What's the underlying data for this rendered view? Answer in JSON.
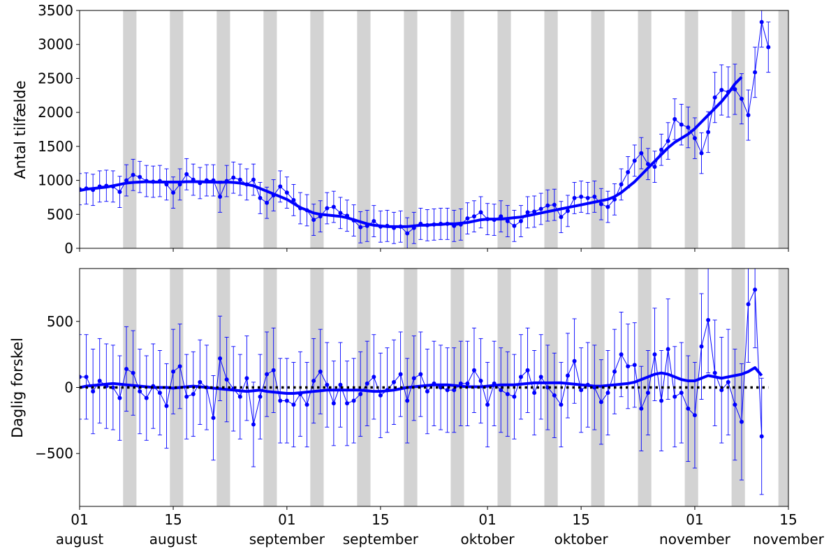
{
  "chart_data": [
    {
      "type": "line",
      "ylabel": "Antal tilfælde",
      "xlabel": "",
      "ylim": [
        0,
        3500
      ],
      "yticks": [
        "0",
        "500",
        "1000",
        "1500",
        "2000",
        "2500",
        "3000",
        "3500"
      ],
      "x_start": "2020-08-01",
      "weekend_shading": true,
      "series": [
        {
          "style": "daily points with error bars",
          "color": "#0000ff",
          "values": [
            870,
            880,
            860,
            910,
            920,
            910,
            830,
            1000,
            1080,
            1050,
            990,
            980,
            990,
            940,
            820,
            940,
            1090,
            1010,
            960,
            1000,
            1000,
            760,
            990,
            1040,
            1010,
            940,
            1010,
            740,
            670,
            780,
            910,
            820,
            710,
            590,
            560,
            420,
            470,
            590,
            610,
            520,
            480,
            410,
            310,
            330,
            400,
            320,
            330,
            300,
            320,
            220,
            300,
            360,
            340,
            350,
            360,
            360,
            330,
            350,
            440,
            470,
            530,
            430,
            420,
            470,
            400,
            330,
            400,
            530,
            540,
            580,
            630,
            640,
            460,
            550,
            740,
            760,
            740,
            760,
            650,
            610,
            720,
            940,
            1120,
            1290,
            1400,
            1240,
            1200,
            1450,
            1580,
            1900,
            1820,
            1780,
            1620,
            1400,
            1710,
            2220,
            2330,
            2300,
            2340,
            2200,
            1960,
            2590,
            3330,
            2960
          ],
          "error_bars": [
            230,
            230,
            230,
            230,
            230,
            230,
            230,
            230,
            230,
            230,
            230,
            230,
            230,
            230,
            230,
            230,
            230,
            230,
            230,
            230,
            230,
            230,
            230,
            230,
            230,
            230,
            230,
            230,
            230,
            230,
            230,
            230,
            230,
            230,
            230,
            230,
            230,
            230,
            230,
            230,
            230,
            230,
            230,
            230,
            230,
            230,
            230,
            230,
            230,
            230,
            230,
            230,
            230,
            230,
            230,
            230,
            230,
            230,
            230,
            230,
            230,
            230,
            230,
            230,
            230,
            230,
            230,
            230,
            230,
            230,
            230,
            230,
            230,
            230,
            230,
            230,
            230,
            230,
            230,
            230,
            230,
            230,
            230,
            230,
            230,
            230,
            230,
            230,
            270,
            300,
            300,
            300,
            300,
            300,
            300,
            370,
            370,
            370,
            370,
            370,
            370,
            370,
            370,
            370
          ]
        },
        {
          "style": "smoothed thick line",
          "color": "#0000ff",
          "values": [
            850,
            870,
            880,
            890,
            900,
            920,
            940,
            960,
            970,
            975,
            980,
            975,
            975,
            975,
            975,
            975,
            980,
            980,
            980,
            975,
            975,
            970,
            975,
            970,
            960,
            940,
            920,
            880,
            840,
            800,
            760,
            720,
            660,
            600,
            560,
            520,
            500,
            490,
            480,
            470,
            450,
            420,
            390,
            360,
            340,
            330,
            320,
            320,
            320,
            320,
            330,
            340,
            340,
            350,
            350,
            360,
            360,
            370,
            380,
            400,
            420,
            430,
            430,
            430,
            440,
            450,
            460,
            480,
            500,
            520,
            540,
            560,
            580,
            600,
            620,
            640,
            660,
            680,
            700,
            720,
            760,
            820,
            900,
            980,
            1080,
            1180,
            1280,
            1380,
            1480,
            1560,
            1620,
            1680,
            1760,
            1860,
            1960,
            2060,
            2160,
            2280,
            2420,
            2520
          ]
        }
      ]
    },
    {
      "type": "line",
      "ylabel": "Daglig forskel",
      "xlabel": "",
      "ylim": [
        -900,
        900
      ],
      "yticks": [
        "−500",
        "0",
        "500"
      ],
      "x_start": "2020-08-01",
      "weekend_shading": true,
      "series": [
        {
          "style": "daily points with error bars",
          "color": "#0000ff",
          "values": [
            80,
            80,
            -30,
            50,
            10,
            0,
            -80,
            140,
            110,
            -30,
            -80,
            10,
            -40,
            -140,
            120,
            160,
            -70,
            -50,
            40,
            0,
            -230,
            220,
            60,
            -10,
            -70,
            70,
            -280,
            -70,
            100,
            130,
            -100,
            -100,
            -130,
            -50,
            -130,
            50,
            120,
            20,
            -120,
            20,
            -120,
            -100,
            -50,
            30,
            80,
            -60,
            -20,
            40,
            100,
            -100,
            70,
            100,
            -30,
            30,
            0,
            -20,
            -20,
            30,
            30,
            130,
            50,
            -130,
            30,
            -20,
            -50,
            -70,
            80,
            130,
            -40,
            80,
            0,
            -60,
            -130,
            90,
            200,
            -20,
            20,
            0,
            -110,
            -40,
            120,
            250,
            160,
            170,
            -160,
            -40,
            250,
            -100,
            290,
            -70,
            -40,
            -160,
            -210,
            310,
            510,
            110,
            -20,
            40,
            -130,
            -260,
            630,
            740,
            -370
          ],
          "error_bars": [
            320,
            320,
            320,
            320,
            320,
            320,
            320,
            320,
            320,
            320,
            320,
            320,
            320,
            320,
            320,
            320,
            320,
            320,
            320,
            320,
            320,
            320,
            320,
            320,
            320,
            320,
            320,
            320,
            320,
            320,
            320,
            320,
            320,
            320,
            320,
            320,
            320,
            320,
            320,
            320,
            320,
            320,
            320,
            320,
            320,
            320,
            320,
            320,
            320,
            320,
            320,
            320,
            320,
            320,
            320,
            320,
            320,
            320,
            320,
            320,
            320,
            320,
            320,
            320,
            320,
            320,
            320,
            320,
            320,
            320,
            320,
            320,
            320,
            320,
            320,
            320,
            320,
            320,
            320,
            320,
            320,
            320,
            320,
            320,
            320,
            320,
            350,
            380,
            380,
            380,
            380,
            400,
            400,
            400,
            400,
            400,
            400,
            400,
            420,
            440,
            440,
            440,
            440
          ]
        },
        {
          "style": "smoothed thick line",
          "color": "#0000ff",
          "values": [
            0,
            10,
            15,
            20,
            25,
            30,
            25,
            20,
            15,
            10,
            5,
            0,
            0,
            0,
            -5,
            0,
            5,
            10,
            5,
            0,
            -5,
            -10,
            -15,
            -20,
            -25,
            -30,
            -25,
            -20,
            -30,
            -35,
            -40,
            -45,
            -45,
            -40,
            -35,
            -30,
            -25,
            -20,
            -20,
            -20,
            -20,
            -20,
            -20,
            -25,
            -30,
            -30,
            -25,
            -20,
            -10,
            0,
            5,
            10,
            15,
            20,
            20,
            20,
            15,
            10,
            5,
            5,
            5,
            10,
            15,
            20,
            20,
            20,
            25,
            30,
            35,
            35,
            35,
            35,
            35,
            30,
            25,
            20,
            15,
            10,
            10,
            15,
            20,
            25,
            30,
            40,
            60,
            80,
            100,
            110,
            100,
            80,
            60,
            50,
            50,
            70,
            90,
            80,
            70,
            80,
            90,
            100,
            120,
            150,
            90
          ]
        },
        {
          "style": "zero reference dotted line",
          "color": "#000000",
          "values": [
            0,
            0
          ]
        }
      ]
    }
  ],
  "x_axis": {
    "ticks": [
      {
        "day": "01",
        "month": "august"
      },
      {
        "day": "15",
        "month": "august"
      },
      {
        "day": "01",
        "month": "september"
      },
      {
        "day": "15",
        "month": "september"
      },
      {
        "day": "01",
        "month": "oktober"
      },
      {
        "day": "15",
        "month": "oktober"
      },
      {
        "day": "01",
        "month": "november"
      },
      {
        "day": "15",
        "month": "november"
      }
    ]
  },
  "colors": {
    "series": "#0000ff",
    "weekend_shade": "#d3d3d3",
    "reference": "#000000"
  }
}
